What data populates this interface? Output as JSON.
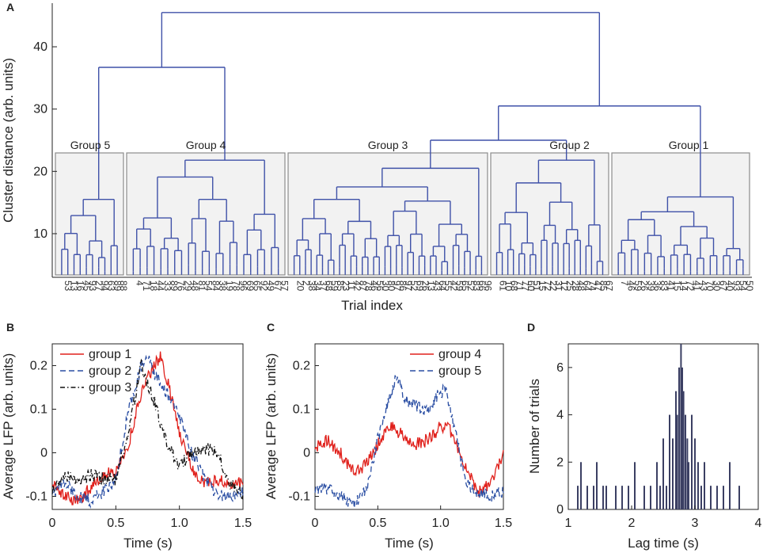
{
  "colors": {
    "dendrogram": "#3f51a8",
    "group1": "#e0201b",
    "group2": "#2a4ea3",
    "group3": "#111111",
    "group4": "#e0201b",
    "group5": "#2a4ea3",
    "hist": "#3b3f63",
    "groupbox_fill": "#f2f2f2",
    "groupbox_stroke": "#8c8c8c"
  },
  "panelA": {
    "label": "A",
    "ylabel": "Cluster distance (arb. units)",
    "xlabel": "Trial index",
    "yticks": [
      "10",
      "20",
      "30",
      "40"
    ],
    "ytick_values": [
      10,
      20,
      30,
      40
    ],
    "ylim": [
      3,
      47
    ],
    "groups": [
      {
        "name": "Group 5",
        "label": "Group 5",
        "leaves": [
          "53",
          "13",
          "16",
          "45",
          "93",
          "27",
          "94",
          "63",
          "89",
          "88"
        ]
      },
      {
        "name": "Group 4",
        "label": "Group 4",
        "leaves": [
          "4",
          "71",
          "18",
          "44",
          "33",
          "89",
          "76",
          "29",
          "48",
          "81",
          "54",
          "84",
          "38",
          "19",
          "78",
          "96",
          "69",
          "65",
          "92",
          "49",
          "67",
          "57"
        ]
      },
      {
        "name": "Group 3",
        "label": "Group 3",
        "leaves": [
          "20",
          "2",
          "38",
          "34",
          "37",
          "68",
          "59",
          "85",
          "23",
          "11",
          "42",
          "87",
          "78",
          "46",
          "56",
          "30",
          "80",
          "97",
          "86",
          "97",
          "52",
          "69",
          "26",
          "13",
          "43",
          "64",
          "55",
          "42",
          "59",
          "65",
          "52",
          "83",
          "66",
          "96"
        ]
      },
      {
        "name": "Group 2",
        "label": "Group 2",
        "leaves": [
          "61",
          "10",
          "68",
          "71",
          "77",
          "60",
          "51",
          "15",
          "72",
          "22",
          "31",
          "12",
          "25",
          "28",
          "48",
          "64",
          "74",
          "47",
          "85",
          "67"
        ]
      },
      {
        "name": "Group 1",
        "label": "Group 1",
        "leaves": [
          "7",
          "46",
          "59",
          "26",
          "39",
          "36",
          "83",
          "41",
          "15",
          "14",
          "72",
          "41",
          "43",
          "70",
          "30",
          "67",
          "40",
          "93",
          "54",
          "50"
        ]
      }
    ],
    "links": [
      {
        "groups": [
          "Group 5",
          "Group 4"
        ],
        "height": 36.7
      },
      {
        "groups": [
          "Group 3",
          "Group 2"
        ],
        "height": 25
      },
      {
        "groups": [
          "Group 3+2",
          "Group 1"
        ],
        "height": 30.5
      },
      {
        "groups": [
          "Group 5+4",
          "Group 3+2+1"
        ],
        "height": 45.5
      }
    ],
    "group_heights": {
      "Group 5": 15.5,
      "Group 4": 21.8,
      "Group 3": 20.5,
      "Group 2": 21.8,
      "Group 1": 15.9
    }
  },
  "panelB": {
    "label": "B",
    "ylabel": "Average LFP (arb. units)",
    "xlabel": "Time (s)",
    "xticks": [
      "0",
      "0.5",
      "1.0",
      "1.5"
    ],
    "yticks": [
      "-0.1",
      "0",
      "0.1",
      "0.2"
    ],
    "legend": [
      "group 1",
      "group 2",
      "group 3"
    ]
  },
  "panelC": {
    "label": "C",
    "ylabel": "Average LFP (arb. units)",
    "xlabel": "Time (s)",
    "xticks": [
      "0",
      "0.5",
      "1.0",
      "1.5"
    ],
    "yticks": [
      "-0.1",
      "0",
      "0.1",
      "0.2"
    ],
    "legend": [
      "group 4",
      "group 5"
    ]
  },
  "panelD": {
    "label": "D",
    "ylabel": "Number of trials",
    "xlabel": "Lag time (s)",
    "xticks": [
      "1",
      "2",
      "3",
      "4"
    ],
    "yticks": [
      "0",
      "2",
      "4",
      "6"
    ]
  },
  "chart_data": [
    {
      "type": "dendrogram",
      "title": "",
      "xlabel": "Trial index",
      "ylabel": "Cluster distance (arb. units)",
      "ylim": [
        3,
        47
      ],
      "groups": [
        "Group 5",
        "Group 4",
        "Group 3",
        "Group 2",
        "Group 1"
      ],
      "group_sizes": [
        10,
        22,
        34,
        20,
        20
      ]
    },
    {
      "type": "line",
      "xlabel": "Time (s)",
      "ylabel": "Average LFP (arb. units)",
      "xlim": [
        0,
        1.5
      ],
      "ylim": [
        -0.13,
        0.25
      ],
      "series": [
        {
          "name": "group 1",
          "style": "solid",
          "x": [
            0,
            0.1,
            0.2,
            0.3,
            0.4,
            0.5,
            0.6,
            0.7,
            0.8,
            0.85,
            0.9,
            1.0,
            1.1,
            1.2,
            1.3,
            1.4,
            1.5
          ],
          "values": [
            -0.07,
            -0.1,
            -0.11,
            -0.08,
            -0.05,
            -0.04,
            0.02,
            0.14,
            0.2,
            0.22,
            0.17,
            0.05,
            -0.04,
            -0.07,
            -0.06,
            -0.07,
            -0.07
          ]
        },
        {
          "name": "group 2",
          "style": "dashed",
          "x": [
            0,
            0.1,
            0.2,
            0.3,
            0.4,
            0.5,
            0.6,
            0.7,
            0.75,
            0.8,
            0.9,
            1.0,
            1.1,
            1.2,
            1.3,
            1.4,
            1.5
          ],
          "values": [
            -0.09,
            -0.07,
            -0.1,
            -0.11,
            -0.09,
            -0.06,
            0.1,
            0.2,
            0.22,
            0.18,
            0.14,
            0.08,
            0.0,
            -0.06,
            -0.1,
            -0.1,
            -0.09
          ]
        },
        {
          "name": "group 3",
          "style": "dashdot",
          "x": [
            0,
            0.1,
            0.2,
            0.3,
            0.4,
            0.5,
            0.6,
            0.7,
            0.8,
            0.9,
            1.0,
            1.1,
            1.2,
            1.3,
            1.4,
            1.5
          ],
          "values": [
            -0.09,
            -0.05,
            -0.07,
            -0.05,
            -0.06,
            -0.06,
            0.05,
            0.2,
            0.12,
            0.02,
            -0.03,
            0.0,
            0.01,
            0.0,
            -0.07,
            -0.1
          ]
        }
      ]
    },
    {
      "type": "line",
      "xlabel": "Time (s)",
      "ylabel": "Average LFP (arb. units)",
      "xlim": [
        0,
        1.5
      ],
      "ylim": [
        -0.13,
        0.25
      ],
      "series": [
        {
          "name": "group 4",
          "style": "solid",
          "x": [
            0,
            0.1,
            0.2,
            0.3,
            0.4,
            0.5,
            0.6,
            0.7,
            0.8,
            0.9,
            1.0,
            1.05,
            1.1,
            1.2,
            1.3,
            1.4,
            1.5
          ],
          "values": [
            0.01,
            0.03,
            0.0,
            -0.04,
            -0.03,
            0.02,
            0.06,
            0.04,
            0.02,
            0.03,
            0.06,
            0.06,
            0.04,
            -0.03,
            -0.09,
            -0.07,
            0.0
          ]
        },
        {
          "name": "group 5",
          "style": "dashed",
          "x": [
            0,
            0.1,
            0.2,
            0.3,
            0.4,
            0.5,
            0.6,
            0.65,
            0.7,
            0.8,
            0.9,
            1.0,
            1.05,
            1.1,
            1.2,
            1.3,
            1.4,
            1.5
          ],
          "values": [
            -0.09,
            -0.08,
            -0.1,
            -0.12,
            -0.09,
            0.03,
            0.13,
            0.18,
            0.13,
            0.11,
            0.1,
            0.14,
            0.14,
            0.07,
            -0.07,
            -0.09,
            -0.1,
            -0.09
          ]
        }
      ]
    },
    {
      "type": "bar",
      "title": "",
      "xlabel": "Lag time (s)",
      "ylabel": "Number of trials",
      "xlim": [
        1,
        4
      ],
      "ylim": [
        0,
        7
      ],
      "bin_centers": [
        1.15,
        1.2,
        1.3,
        1.4,
        1.45,
        1.55,
        1.6,
        1.75,
        1.85,
        1.95,
        2.05,
        2.2,
        2.3,
        2.4,
        2.45,
        2.5,
        2.55,
        2.6,
        2.65,
        2.7,
        2.72,
        2.75,
        2.78,
        2.8,
        2.82,
        2.85,
        2.88,
        2.9,
        2.95,
        3.0,
        3.05,
        3.1,
        3.15,
        3.25,
        3.35,
        3.45,
        3.55,
        3.7
      ],
      "values": [
        1,
        2,
        1,
        1,
        2,
        1,
        1,
        1,
        1,
        1,
        2,
        1,
        1,
        2,
        1,
        3,
        1,
        4,
        3,
        5,
        4,
        6,
        7,
        6,
        5,
        4,
        3,
        2,
        4,
        3,
        2,
        1,
        2,
        1,
        1,
        1,
        2,
        1
      ]
    }
  ]
}
